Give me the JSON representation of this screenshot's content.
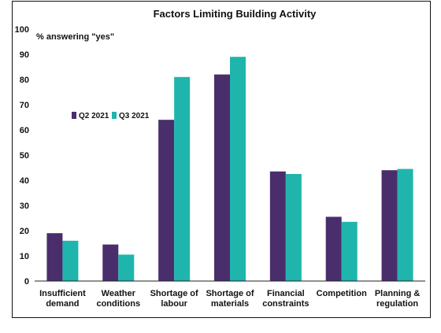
{
  "chart_data": {
    "type": "bar",
    "title": "Factors Limiting Building Activity",
    "ylabel": "",
    "y_annotation": "% answering \"yes\"",
    "xlabel": "",
    "ylim": [
      0,
      100
    ],
    "yticks": [
      0,
      10,
      20,
      30,
      40,
      50,
      60,
      70,
      80,
      90,
      100
    ],
    "categories": [
      [
        "Insufficient",
        "demand"
      ],
      [
        "Weather",
        "conditions"
      ],
      [
        "Shortage of",
        "labour"
      ],
      [
        "Shortage of",
        "materials"
      ],
      [
        "Financial",
        "constraints"
      ],
      [
        "Competition"
      ],
      [
        "Planning &",
        "regulation"
      ]
    ],
    "series": [
      {
        "name": "Q2 2021",
        "color": "#4a2d6b",
        "values": [
          19,
          14.5,
          64,
          82,
          43.5,
          25.5,
          44
        ]
      },
      {
        "name": "Q3 2021",
        "color": "#1fb5ad",
        "values": [
          16,
          10.5,
          81,
          89,
          42.5,
          23.5,
          44.5
        ]
      }
    ],
    "legend_position": "upper-left",
    "grid": false
  }
}
